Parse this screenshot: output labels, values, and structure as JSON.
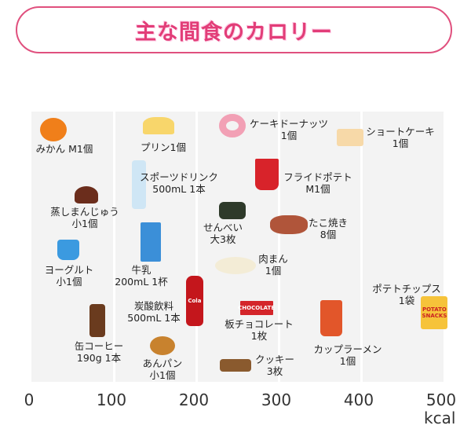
{
  "title": "主な間食のカロリー",
  "chart_data": {
    "type": "scatter",
    "title": "主な間食のカロリー",
    "xlabel": "kcal",
    "xlim": [
      0,
      500
    ],
    "xticks": [
      0,
      100,
      200,
      300,
      400,
      500
    ],
    "grid": true,
    "points": [
      {
        "label": [
          "みかん M1個"
        ],
        "value": 27,
        "icon": "mandarin-orange",
        "color": "#f07f1a"
      },
      {
        "label": [
          "プリン1個"
        ],
        "value": 154,
        "icon": "pudding",
        "color": "#f8d66b"
      },
      {
        "label": [
          "ケーキドーナッツ",
          "1個"
        ],
        "value": 244,
        "icon": "donut",
        "color": "#f2a0b5"
      },
      {
        "label": [
          "ショートケーキ",
          "1個"
        ],
        "value": 387,
        "icon": "shortcake",
        "color": "#f7d9a8"
      },
      {
        "label": [
          "スポーツドリンク",
          "500mL 1本"
        ],
        "value": 130,
        "icon": "sports-drink-bottle",
        "color": "#cfe6f5"
      },
      {
        "label": [
          "フライドポテト",
          "M1個"
        ],
        "value": 286,
        "icon": "french-fries",
        "color": "#d8232a"
      },
      {
        "label": [
          "蒸しまんじゅう",
          "小1個"
        ],
        "value": 67,
        "icon": "steamed-bun",
        "color": "#6b2d1c"
      },
      {
        "label": [
          "せんべい",
          "大3枚"
        ],
        "value": 244,
        "icon": "rice-cracker",
        "color": "#2e3a2a"
      },
      {
        "label": [
          "たこ焼き",
          "8個"
        ],
        "value": 312,
        "icon": "takoyaki",
        "color": "#b0553a"
      },
      {
        "label": [
          "ヨーグルト",
          "小1個"
        ],
        "value": 45,
        "icon": "yogurt",
        "color": "#3b9ae0"
      },
      {
        "label": [
          "牛乳",
          "200mL 1杯"
        ],
        "value": 145,
        "icon": "milk-carton",
        "color": "#3b8fd8"
      },
      {
        "label": [
          "肉まん",
          "1個"
        ],
        "value": 248,
        "icon": "meat-bun",
        "color": "#f3ecd6"
      },
      {
        "label": [
          "炭酸飲料",
          "500mL 1本"
        ],
        "value": 198,
        "icon": "cola-bottle",
        "color": "#c4161c",
        "text": "Cola"
      },
      {
        "label": [
          "ポテトチップス",
          "1袋"
        ],
        "value": 489,
        "icon": "potato-chips-bag",
        "color": "#f6c33a",
        "text": "POTATO SNACKS"
      },
      {
        "label": [
          "板チョコレート",
          "1枚"
        ],
        "value": 273,
        "icon": "chocolate-bar",
        "color": "#d4252a",
        "text": "CHOCOLATE"
      },
      {
        "label": [
          "缶コーヒー",
          "190g 1本"
        ],
        "value": 80,
        "icon": "canned-coffee",
        "color": "#6a3b1e"
      },
      {
        "label": [
          "カップラーメン",
          "1個"
        ],
        "value": 364,
        "icon": "cup-noodle",
        "color": "#e2562a"
      },
      {
        "label": [
          "あんパン",
          "小1個"
        ],
        "value": 159,
        "icon": "anpan",
        "color": "#c8822e"
      },
      {
        "label": [
          "クッキー",
          "3枚"
        ],
        "value": 248,
        "icon": "cookies",
        "color": "#8a5a2e"
      }
    ]
  }
}
